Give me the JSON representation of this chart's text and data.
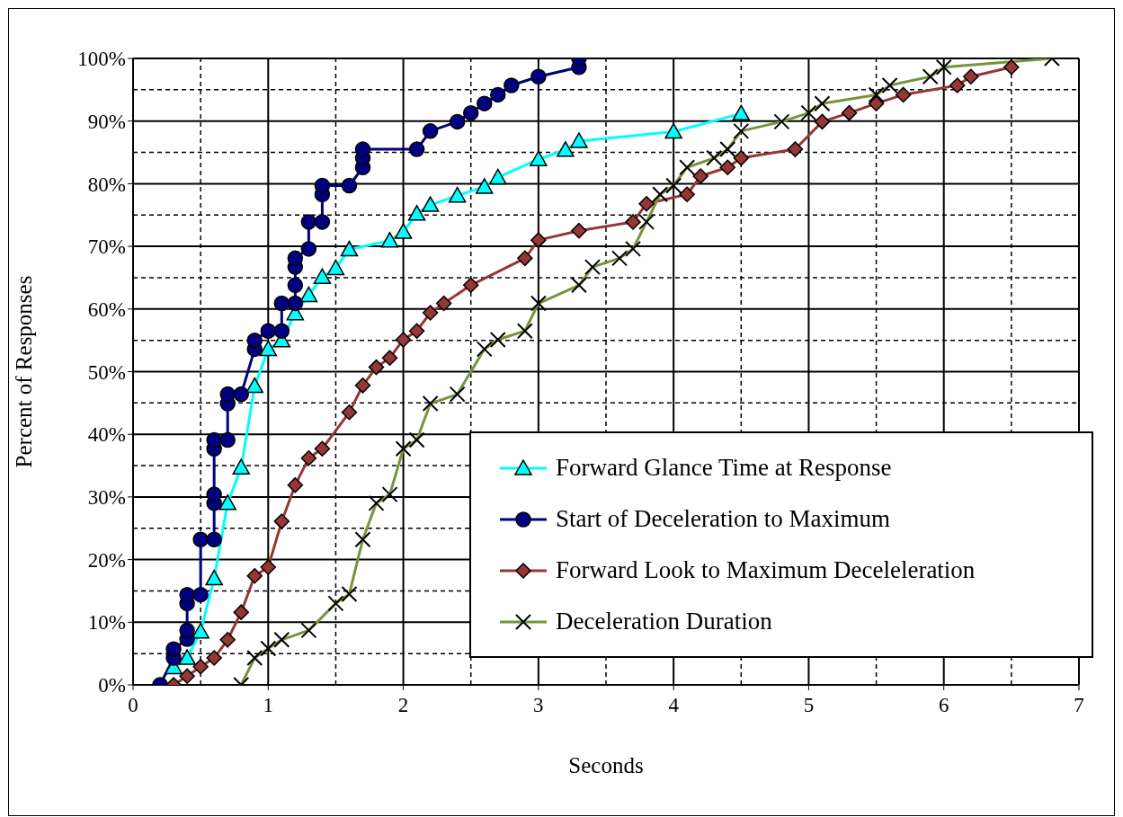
{
  "chart_data": {
    "type": "line",
    "xlabel": "Seconds",
    "ylabel": "Percent of Responses",
    "xlim": [
      0,
      7
    ],
    "xticks": [
      0,
      1,
      2,
      3,
      4,
      5,
      6,
      7
    ],
    "ylim": [
      0,
      100
    ],
    "yticks": [
      {
        "value": 0,
        "label": "0%"
      },
      {
        "value": 10,
        "label": "10%"
      },
      {
        "value": 20,
        "label": "20%"
      },
      {
        "value": 30,
        "label": "30%"
      },
      {
        "value": 40,
        "label": "40%"
      },
      {
        "value": 50,
        "label": "50%"
      },
      {
        "value": 60,
        "label": "60%"
      },
      {
        "value": 70,
        "label": "70%"
      },
      {
        "value": 80,
        "label": "80%"
      },
      {
        "value": 90,
        "label": "90%"
      },
      {
        "value": 100,
        "label": "100%"
      }
    ],
    "grid": true,
    "legend": "bottom right",
    "line_style": "solid",
    "series": [
      {
        "name": "Forward Glance Time  at Response",
        "color": "#00ffff",
        "marker": "triangle",
        "x": [
          0.3,
          0.4,
          0.5,
          0.6,
          0.7,
          0.8,
          0.9,
          1.0,
          1.1,
          1.2,
          1.3,
          1.4,
          1.5,
          1.6,
          1.9,
          2.0,
          2.1,
          2.2,
          2.4,
          2.6,
          2.7,
          3.0,
          3.2,
          3.3,
          4.0,
          4.5
        ],
        "values": [
          2.8,
          4.3,
          8.5,
          17,
          29,
          34.7,
          47.7,
          53.6,
          55,
          59.3,
          62.2,
          65.1,
          66.5,
          69.5,
          70.9,
          72.3,
          75.2,
          76.6,
          78.1,
          79.5,
          81,
          83.9,
          85.4,
          86.8,
          88.3,
          91.2
        ]
      },
      {
        "name": "Start of Deceleration to Maximum",
        "color": "#000080",
        "marker": "circle",
        "x": [
          0.2,
          0.3,
          0.3,
          0.4,
          0.4,
          0.4,
          0.4,
          0.5,
          0.5,
          0.6,
          0.6,
          0.6,
          0.6,
          0.6,
          0.7,
          0.7,
          0.7,
          0.8,
          0.9,
          0.9,
          1.0,
          1.1,
          1.1,
          1.2,
          1.2,
          1.2,
          1.2,
          1.3,
          1.3,
          1.4,
          1.4,
          1.4,
          1.6,
          1.7,
          1.7,
          1.7,
          2.1,
          2.2,
          2.4,
          2.5,
          2.6,
          2.7,
          2.8,
          3.0,
          3.3,
          3.3
        ],
        "values": [
          0,
          4.3,
          5.7,
          7.3,
          8.7,
          13,
          14.4,
          14.4,
          23.2,
          23.2,
          29,
          30.4,
          37.7,
          39.1,
          39.1,
          44.9,
          46.4,
          46.4,
          53.6,
          55,
          56.5,
          56.5,
          60.9,
          60.9,
          63.8,
          66.7,
          68.1,
          69.6,
          73.9,
          73.9,
          78.3,
          79.7,
          79.7,
          82.6,
          84.1,
          85.5,
          85.5,
          88.4,
          89.9,
          91.3,
          92.8,
          94.2,
          95.7,
          97.1,
          98.6,
          100
        ]
      },
      {
        "name": "Forward Look to Maximum  Deceleleration",
        "color": "#953735",
        "marker": "diamond",
        "x": [
          0.3,
          0.4,
          0.5,
          0.6,
          0.7,
          0.8,
          0.9,
          1.0,
          1.1,
          1.2,
          1.3,
          1.4,
          1.6,
          1.7,
          1.8,
          1.9,
          2.0,
          2.1,
          2.2,
          2.3,
          2.5,
          2.9,
          3.0,
          3.3,
          3.7,
          3.8,
          4.1,
          4.2,
          4.4,
          4.5,
          4.9,
          5.1,
          5.3,
          5.5,
          5.7,
          6.1,
          6.2,
          6.5
        ],
        "values": [
          0,
          1.4,
          2.9,
          4.3,
          7.2,
          11.6,
          17.4,
          18.8,
          26.1,
          31.9,
          36.2,
          37.7,
          43.5,
          47.8,
          50.7,
          52.2,
          55.1,
          56.5,
          59.4,
          60.9,
          63.8,
          68.1,
          71,
          72.5,
          73.9,
          76.8,
          78.3,
          81.2,
          82.6,
          84.1,
          85.5,
          89.9,
          91.3,
          92.8,
          94.2,
          95.7,
          97.1,
          98.6
        ]
      },
      {
        "name": "Deceleration Duration",
        "color": "#77933c",
        "marker": "cross",
        "x": [
          0.8,
          0.9,
          1.0,
          1.1,
          1.3,
          1.5,
          1.6,
          1.7,
          1.8,
          1.9,
          2.0,
          2.1,
          2.2,
          2.4,
          2.6,
          2.7,
          2.9,
          3.0,
          3.3,
          3.4,
          3.6,
          3.7,
          3.8,
          3.9,
          4.0,
          4.1,
          4.3,
          4.4,
          4.5,
          4.8,
          5.0,
          5.1,
          5.5,
          5.6,
          5.9,
          6.0,
          6.8
        ],
        "values": [
          0,
          4.3,
          5.8,
          7.2,
          8.7,
          13,
          14.5,
          23.2,
          29,
          30.4,
          37.7,
          39.1,
          44.9,
          46.4,
          53.6,
          55.1,
          56.5,
          60.9,
          63.8,
          66.7,
          68.1,
          69.6,
          73.9,
          78.3,
          79.7,
          82.6,
          84.1,
          85.5,
          88.4,
          89.9,
          91.3,
          92.8,
          94.2,
          95.7,
          97.1,
          98.6,
          100
        ]
      }
    ]
  }
}
